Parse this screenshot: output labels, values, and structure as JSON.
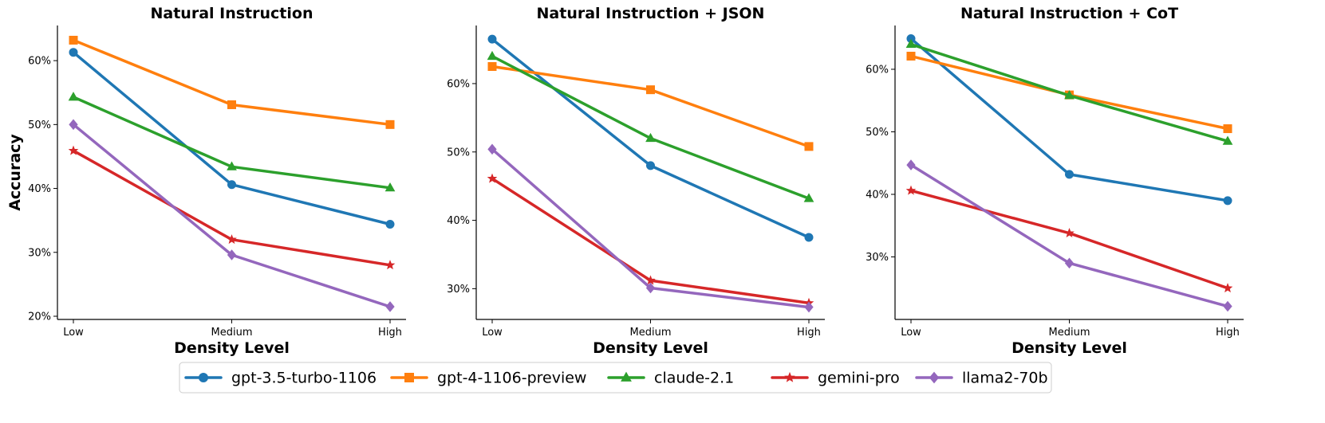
{
  "colors": {
    "gpt-3.5-turbo-1106": "#1f77b4",
    "gpt-4-1106-preview": "#ff7f0e",
    "claude-2.1": "#2ca02c",
    "gemini-pro": "#d62728",
    "llama2-70b": "#9467bd"
  },
  "legend": [
    {
      "name": "gpt-3.5-turbo-1106",
      "marker": "circle"
    },
    {
      "name": "gpt-4-1106-preview",
      "marker": "square"
    },
    {
      "name": "claude-2.1",
      "marker": "triangle"
    },
    {
      "name": "gemini-pro",
      "marker": "star"
    },
    {
      "name": "llama2-70b",
      "marker": "diamond"
    }
  ],
  "chart_data": [
    {
      "type": "line",
      "title": "Natural Instruction",
      "xlabel": "Density Level",
      "ylabel": "Accuracy",
      "categories": [
        "Low",
        "Medium",
        "High"
      ],
      "ylim": [
        19.5,
        65.5
      ],
      "yticks": [
        20,
        30,
        40,
        50,
        60
      ],
      "ytick_labels": [
        "20%",
        "30%",
        "40%",
        "50%",
        "60%"
      ],
      "grid": false,
      "series": [
        {
          "name": "gpt-3.5-turbo-1106",
          "values": [
            61.3,
            40.6,
            34.4
          ]
        },
        {
          "name": "gpt-4-1106-preview",
          "values": [
            63.2,
            53.1,
            50.0
          ]
        },
        {
          "name": "claude-2.1",
          "values": [
            54.3,
            43.4,
            40.1
          ]
        },
        {
          "name": "gemini-pro",
          "values": [
            45.9,
            32.0,
            28.0
          ]
        },
        {
          "name": "llama2-70b",
          "values": [
            50.0,
            29.6,
            21.5
          ]
        }
      ]
    },
    {
      "type": "line",
      "title": "Natural Instruction + JSON",
      "xlabel": "Density Level",
      "ylabel": "",
      "categories": [
        "Low",
        "Medium",
        "High"
      ],
      "ylim": [
        25.5,
        68.5
      ],
      "yticks": [
        30,
        40,
        50,
        60
      ],
      "ytick_labels": [
        "30%",
        "40%",
        "50%",
        "60%"
      ],
      "grid": false,
      "series": [
        {
          "name": "gpt-3.5-turbo-1106",
          "values": [
            66.5,
            48.0,
            37.5
          ]
        },
        {
          "name": "gpt-4-1106-preview",
          "values": [
            62.5,
            59.1,
            50.8
          ]
        },
        {
          "name": "claude-2.1",
          "values": [
            64.0,
            52.0,
            43.2
          ]
        },
        {
          "name": "gemini-pro",
          "values": [
            46.1,
            31.2,
            27.9
          ]
        },
        {
          "name": "llama2-70b",
          "values": [
            50.4,
            30.1,
            27.3
          ]
        }
      ]
    },
    {
      "type": "line",
      "title": "Natural Instruction + CoT",
      "xlabel": "Density Level",
      "ylabel": "",
      "categories": [
        "Low",
        "Medium",
        "High"
      ],
      "ylim": [
        20.0,
        67.0
      ],
      "yticks": [
        30,
        40,
        50,
        60
      ],
      "ytick_labels": [
        "30%",
        "40%",
        "50%",
        "60%"
      ],
      "grid": false,
      "series": [
        {
          "name": "gpt-3.5-turbo-1106",
          "values": [
            64.9,
            43.2,
            39.0
          ]
        },
        {
          "name": "gpt-4-1106-preview",
          "values": [
            62.1,
            55.9,
            50.5
          ]
        },
        {
          "name": "claude-2.1",
          "values": [
            64.0,
            55.8,
            48.5
          ]
        },
        {
          "name": "gemini-pro",
          "values": [
            40.6,
            33.8,
            25.0
          ]
        },
        {
          "name": "llama2-70b",
          "values": [
            44.7,
            29.0,
            22.1
          ]
        }
      ]
    }
  ]
}
